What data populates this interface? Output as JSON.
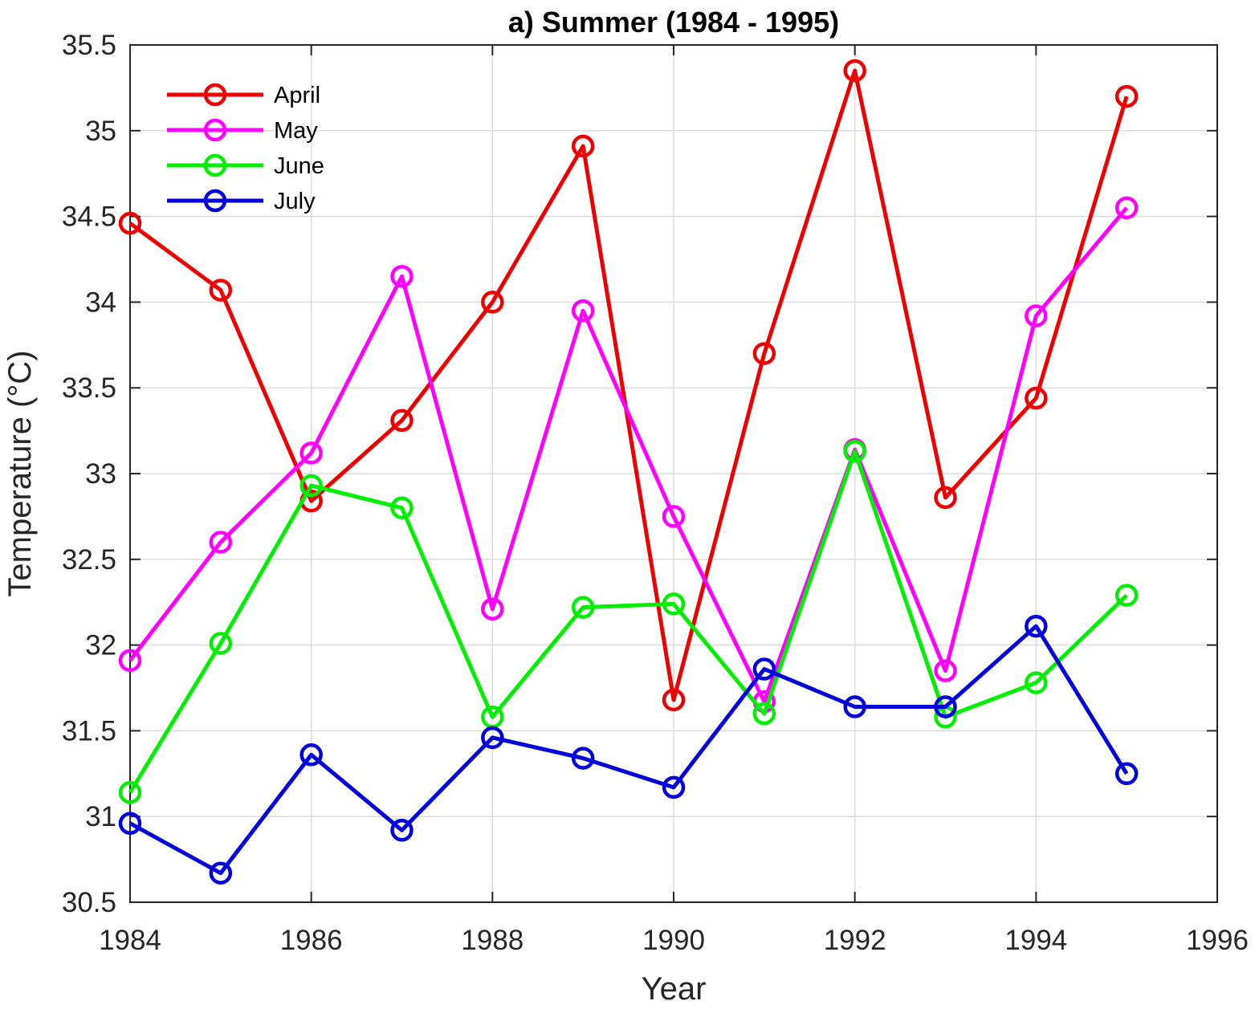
{
  "chart_data": {
    "type": "line",
    "title": "a) Summer (1984 - 1995)",
    "xlabel": "Year",
    "ylabel": "Temperature (°C)",
    "xlim": [
      1984,
      1996
    ],
    "ylim": [
      30.5,
      35.5
    ],
    "xticks": [
      "1984",
      "1986",
      "1988",
      "1990",
      "1992",
      "1994",
      "1996"
    ],
    "yticks": [
      "30.5",
      "31",
      "31.5",
      "32",
      "32.5",
      "33",
      "33.5",
      "34",
      "34.5",
      "35",
      "35.5"
    ],
    "grid": true,
    "legend_position": "top-left",
    "x": [
      1984,
      1985,
      1986,
      1987,
      1988,
      1989,
      1990,
      1991,
      1992,
      1993,
      1994,
      1995
    ],
    "series": [
      {
        "name": "April",
        "color": "#ee0000",
        "values": [
          34.46,
          34.07,
          32.84,
          33.31,
          34.0,
          34.91,
          31.68,
          33.7,
          35.35,
          32.86,
          33.44,
          35.2
        ]
      },
      {
        "name": "May",
        "color": "#ff00ff",
        "values": [
          31.91,
          32.6,
          33.12,
          34.15,
          32.21,
          33.95,
          32.75,
          31.67,
          33.14,
          31.85,
          33.92,
          34.55
        ]
      },
      {
        "name": "June",
        "color": "#00ee00",
        "values": [
          31.14,
          32.01,
          32.93,
          32.8,
          31.58,
          32.22,
          32.24,
          31.6,
          33.13,
          31.58,
          31.78,
          32.29
        ]
      },
      {
        "name": "July",
        "color": "#0000dd",
        "values": [
          30.96,
          30.67,
          31.36,
          30.92,
          31.46,
          31.34,
          31.17,
          31.86,
          31.64,
          31.64,
          32.11,
          31.25
        ]
      }
    ]
  }
}
